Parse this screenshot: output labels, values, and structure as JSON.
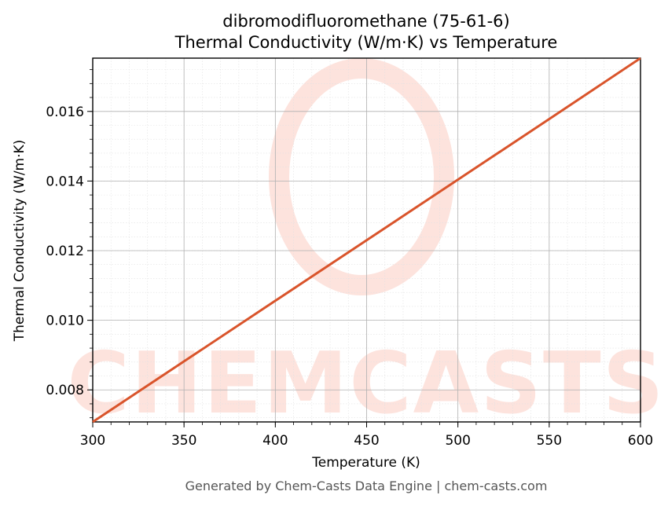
{
  "title_line1": "dibromodifluoromethane (75-61-6)",
  "title_line2": "Thermal Conductivity (W/m·K) vs Temperature",
  "footer": "Generated by Chem-Casts Data Engine | chem-casts.com",
  "watermark": "CHEMCASTS",
  "colors": {
    "line": "#d9542b",
    "watermark": "#fde3dd",
    "grid_major": "#b0b0b0",
    "grid_minor": "#e2e2e2"
  },
  "chart_data": {
    "type": "line",
    "title": "dibromodifluoromethane (75-61-6)\nThermal Conductivity (W/m·K) vs Temperature",
    "xlabel": "Temperature (K)",
    "ylabel": "Thermal Conductivity (W/m·K)",
    "xlim": [
      300,
      600
    ],
    "ylim": [
      0.00708,
      0.01753
    ],
    "x_ticks": [
      "300",
      "350",
      "400",
      "450",
      "500",
      "550",
      "600"
    ],
    "y_ticks": [
      "0.008",
      "0.010",
      "0.012",
      "0.014",
      "0.016"
    ],
    "grid": true,
    "series": [
      {
        "x": [
          300,
          350,
          400,
          450,
          500,
          550,
          600
        ],
        "y": [
          0.00708,
          0.00882,
          0.01056,
          0.0123,
          0.01404,
          0.01578,
          0.01753
        ]
      }
    ]
  }
}
